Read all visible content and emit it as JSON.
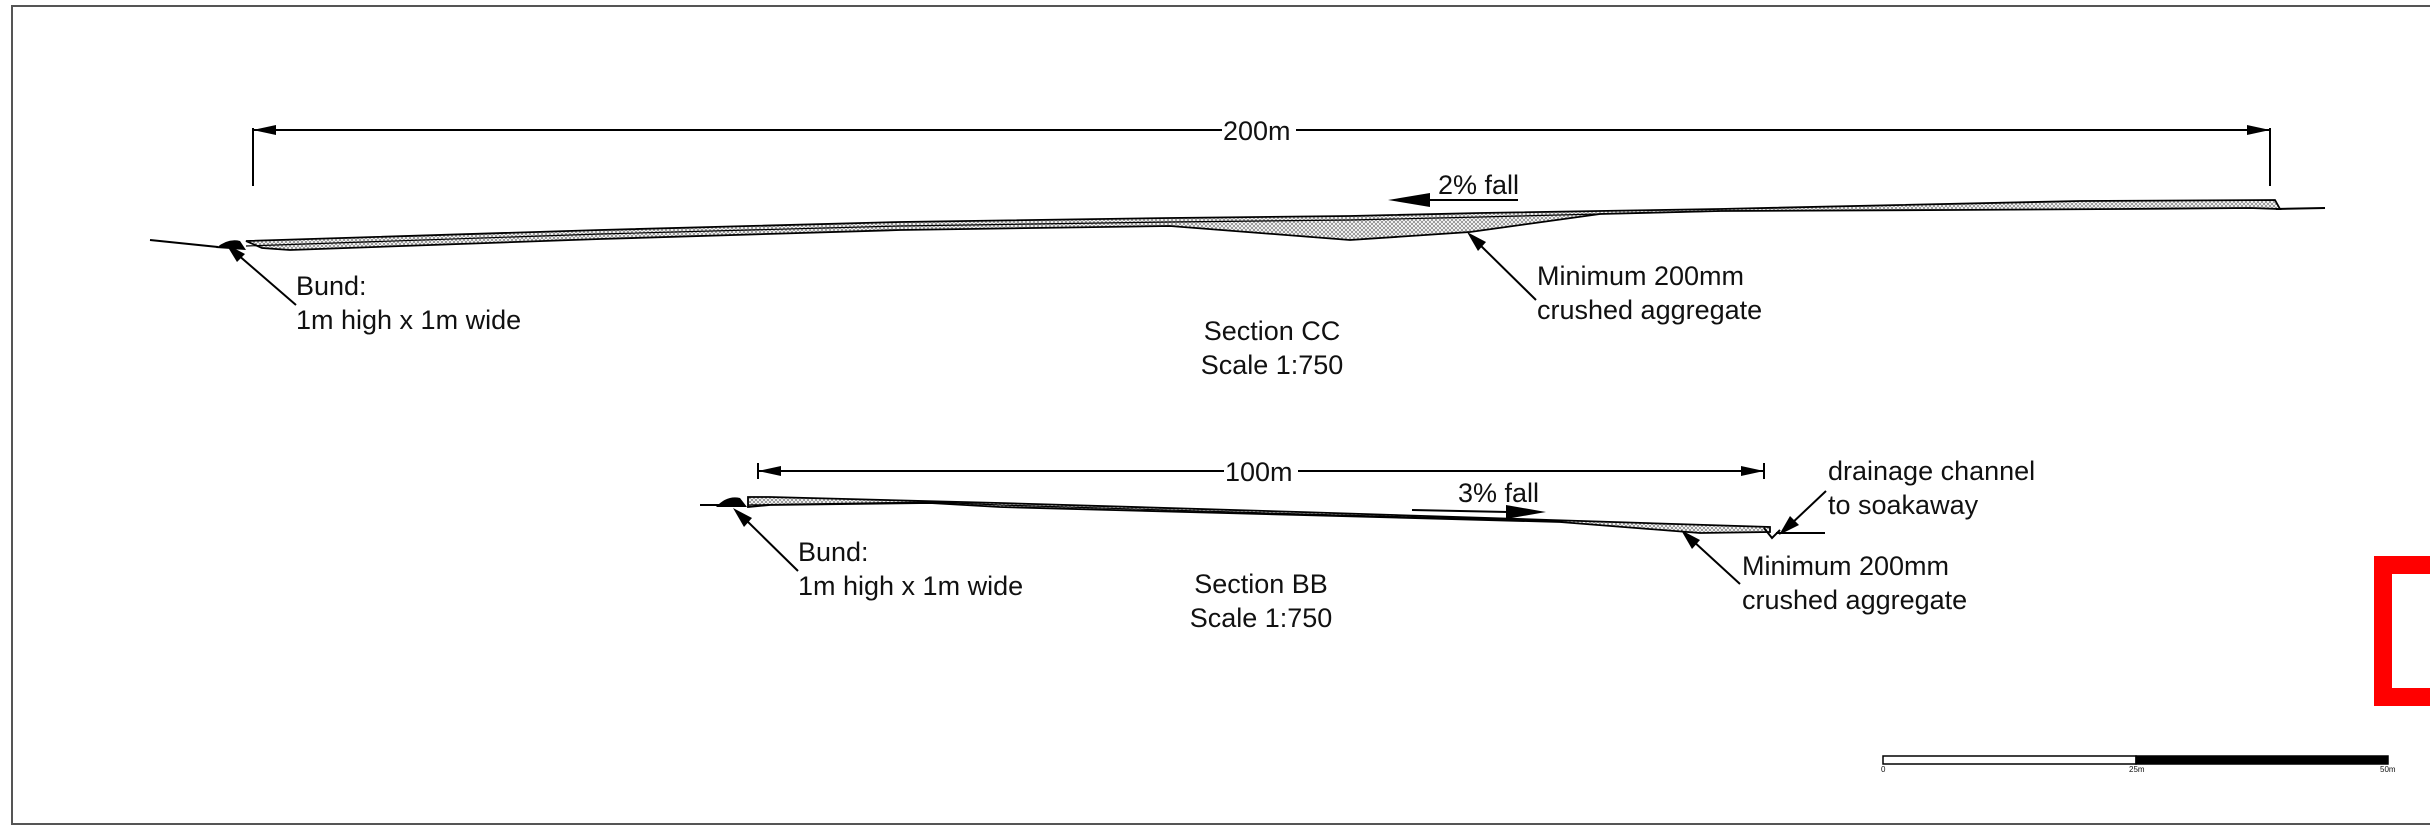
{
  "section_cc": {
    "dimension": "200m",
    "fall": "2% fall",
    "bund_line1": "Bund:",
    "bund_line2": "1m high x 1m wide",
    "aggregate_line1": "Minimum 200mm",
    "aggregate_line2": "crushed aggregate",
    "title": "Section CC",
    "scale": "Scale 1:750"
  },
  "section_bb": {
    "dimension": "100m",
    "fall": "3% fall",
    "bund_line1": "Bund:",
    "bund_line2": "1m high x 1m wide",
    "drainage_line1": "drainage channel",
    "drainage_line2": "to soakaway",
    "aggregate_line1": "Minimum 200mm",
    "aggregate_line2": "crushed aggregate",
    "title": "Section BB",
    "scale": "Scale 1:750"
  },
  "scale_bar": {
    "start": "0",
    "mid": "25m",
    "end": "50m"
  },
  "colors": {
    "line": "#000000",
    "hatch": "#9a9a9a",
    "border": "#555555",
    "marker": "#ff0000"
  }
}
